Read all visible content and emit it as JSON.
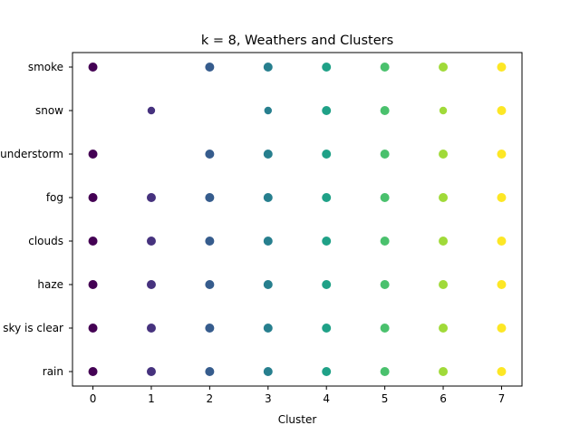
{
  "chart_data": {
    "type": "scatter",
    "title": "k = 8, Weathers and Clusters",
    "xlabel": "Cluster",
    "ylabel": "",
    "x_ticks": [
      0,
      1,
      2,
      3,
      4,
      5,
      6,
      7
    ],
    "y_categories": [
      "rain",
      "sky is clear",
      "haze",
      "clouds",
      "fog",
      "thunderstorm",
      "snow",
      "smoke"
    ],
    "xlim": [
      -0.35,
      7.35
    ],
    "grid": false,
    "legend": "none",
    "colormap": "viridis",
    "cluster_colors": [
      "#440154",
      "#46327e",
      "#365c8d",
      "#277f8e",
      "#1fa187",
      "#4ac16d",
      "#a0da39",
      "#fde725"
    ],
    "points": [
      {
        "weather": "smoke",
        "clusters": [
          0,
          2,
          3,
          4,
          5,
          6,
          7
        ]
      },
      {
        "weather": "snow",
        "clusters": [
          1,
          3,
          4,
          5,
          6,
          7
        ]
      },
      {
        "weather": "thunderstorm",
        "clusters": [
          0,
          2,
          3,
          4,
          5,
          6,
          7
        ]
      },
      {
        "weather": "fog",
        "clusters": [
          0,
          1,
          2,
          3,
          4,
          5,
          6,
          7
        ]
      },
      {
        "weather": "clouds",
        "clusters": [
          0,
          1,
          2,
          3,
          4,
          5,
          6,
          7
        ]
      },
      {
        "weather": "haze",
        "clusters": [
          0,
          1,
          2,
          3,
          4,
          5,
          6,
          7
        ]
      },
      {
        "weather": "sky is clear",
        "clusters": [
          0,
          1,
          2,
          3,
          4,
          5,
          6,
          7
        ]
      },
      {
        "weather": "rain",
        "clusters": [
          0,
          1,
          2,
          3,
          4,
          5,
          6,
          7
        ]
      }
    ]
  }
}
